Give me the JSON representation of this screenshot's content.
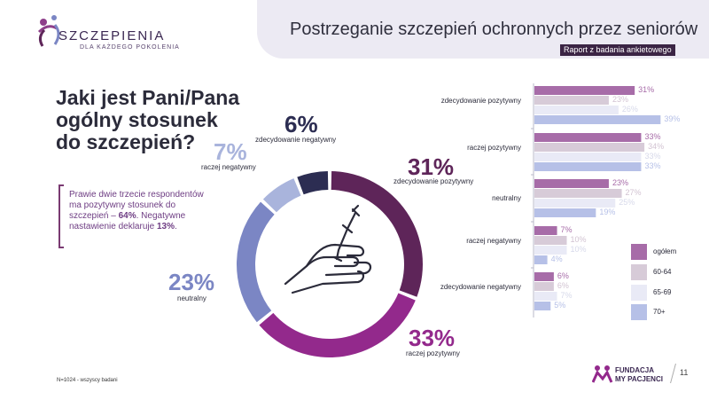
{
  "logo": {
    "name": "SZCZEPIENIA",
    "tagline": "DLA KAŻDEGO POKOLENIA"
  },
  "header": {
    "title": "Postrzeganie szczepień ochronnych przez seniorów",
    "badge": "Raport z badania ankietowego"
  },
  "question": "Jaki jest Pani/Pana\nogólny stosunek\ndo szczepień?",
  "note": {
    "line1": "Prawie dwie trzecie respondentów ma pozytywny stosunek do szczepień – ",
    "value1": "64%",
    "line2": ". Negatywne nastawienie deklaruje ",
    "value2": "13%",
    "line3": "."
  },
  "footnote": "N=1024 - wszyscy badani",
  "brand": {
    "line1": "FUNDACJA",
    "line2": "MY PACJENCI"
  },
  "page_number": "11",
  "colors": {
    "zdecydowanie_pozytywny": "#5e2559",
    "raczej_pozytywny": "#93298c",
    "neutralny": "#7b86c4",
    "raczej_negatywny": "#a9b4dc",
    "zdecydowanie_negatywny": "#2c2d52",
    "ogolem": "#a76ca8",
    "age_60_64": "#d7cbd8",
    "age_65_69": "#e9eaf6",
    "age_70_plus": "#b6c0e7"
  },
  "chart_data": [
    {
      "type": "pie",
      "categories": [
        "zdecydowanie pozytywny",
        "raczej pozytywny",
        "neutralny",
        "raczej negatywny",
        "zdecydowanie negatywny"
      ],
      "values": [
        31,
        33,
        23,
        7,
        6
      ],
      "labels": [
        "31%",
        "33%",
        "23%",
        "7%",
        "6%"
      ],
      "donut": true,
      "center_icon": "hand-syringe-icon"
    },
    {
      "type": "bar",
      "orientation": "horizontal",
      "categories": [
        "zdecydowanie pozytywny",
        "raczej pozytywny",
        "neutralny",
        "raczej negatywny",
        "zdecydowanie negatywny"
      ],
      "series": [
        {
          "name": "ogółem",
          "values": [
            31,
            33,
            23,
            7,
            6
          ]
        },
        {
          "name": "60-64",
          "values": [
            23,
            34,
            27,
            10,
            6
          ]
        },
        {
          "name": "65-69",
          "values": [
            26,
            33,
            25,
            10,
            7
          ]
        },
        {
          "name": "70+",
          "values": [
            39,
            33,
            19,
            4,
            5
          ]
        }
      ],
      "value_suffix": "%",
      "legend": "right"
    }
  ]
}
